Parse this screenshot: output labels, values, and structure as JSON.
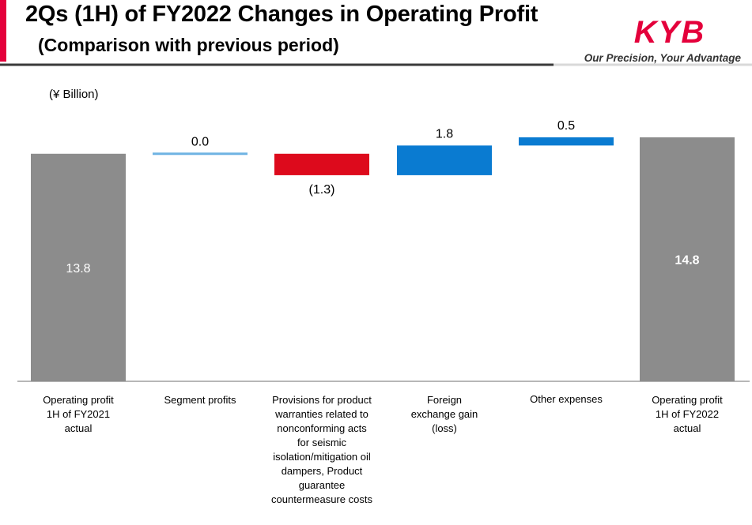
{
  "header": {
    "title": "2Qs (1H) of FY2022 Changes in Operating Profit",
    "subtitle": "(Comparison with previous period)",
    "logo_text": "KYB",
    "tagline": "Our Precision, Your Advantage"
  },
  "colors": {
    "accent": "#e4003b",
    "total_bar": "#8c8c8c",
    "increase_bar": "#0a7bd1",
    "decrease_bar": "#dd0a1c",
    "zero_bar": "#6fb3e3"
  },
  "chart_data": {
    "type": "bar",
    "subtype": "waterfall",
    "unit_label": "(¥ Billion)",
    "categories": [
      "Operating profit 1H of FY2021 actual",
      "Segment profits",
      "Provisions for product warranties related to nonconforming acts for seismic isolation/mitigation oil dampers, Product guarantee countermeasure costs",
      "Foreign exchange gain (loss)",
      "Other expenses",
      "Operating profit 1H of FY2022 actual"
    ],
    "category_lines": [
      [
        "Operating profit",
        "1H of FY2021",
        "actual"
      ],
      [
        "Segment profits"
      ],
      [
        "Provisions for product",
        "warranties related to",
        "nonconforming acts",
        "for seismic",
        "isolation/mitigation oil",
        "dampers, Product",
        "guarantee",
        "countermeasure costs"
      ],
      [
        "Foreign",
        "exchange gain",
        "(loss)"
      ],
      [
        "Other expenses"
      ],
      [
        "Operating profit",
        "1H of FY2022",
        "actual"
      ]
    ],
    "values": [
      13.8,
      0.0,
      -1.3,
      1.8,
      0.5,
      14.8
    ],
    "bar_kind": [
      "total",
      "zero",
      "decrease",
      "increase",
      "increase",
      "total"
    ],
    "data_labels": [
      "13.8",
      "0.0",
      "(1.3)",
      "1.8",
      "0.5",
      "14.8"
    ],
    "ylim": [
      0,
      15.8
    ],
    "grid": false,
    "legend": "none"
  }
}
